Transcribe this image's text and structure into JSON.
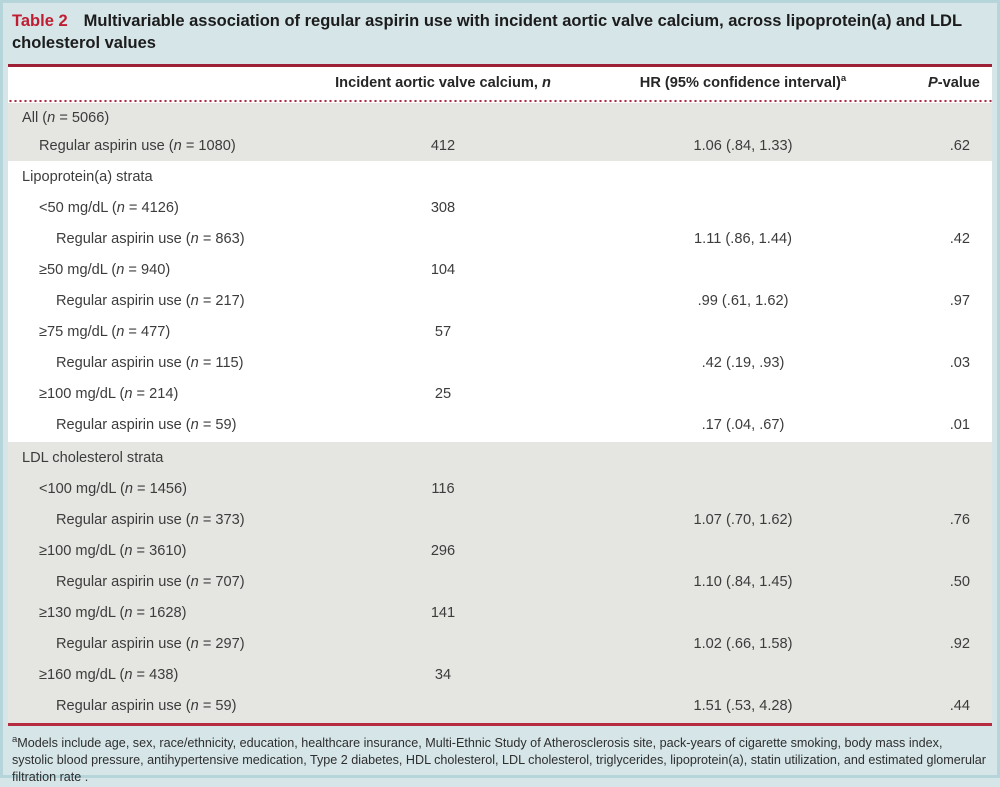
{
  "title": {
    "label": "Table 2",
    "text": "Multivariable association of regular aspirin use with incident aortic valve calcium, across lipoprotein(a) and LDL cholesterol values"
  },
  "table": {
    "columns": {
      "incident": {
        "label": "Incident aortic valve calcium, ",
        "italic": "n"
      },
      "hr": {
        "label": "HR (95% confidence interval)",
        "sup": "a"
      },
      "p": {
        "italic": "P",
        "label": "-value"
      }
    },
    "sections": [
      {
        "name": "all",
        "shaded": true,
        "rows": [
          {
            "label": "All (n = 5066)",
            "indent": 0,
            "incident": "",
            "hr": "",
            "p": ""
          },
          {
            "label": "Regular aspirin use (n = 1080)",
            "indent": 1,
            "incident": "412",
            "hr": "1.06 (.84, 1.33)",
            "p": ".62"
          }
        ]
      },
      {
        "name": "lipoprotein-a-strata",
        "shaded": false,
        "rows": [
          {
            "label": "Lipoprotein(a) strata",
            "indent": 0,
            "incident": "",
            "hr": "",
            "p": ""
          },
          {
            "label": "<50 mg/dL (n = 4126)",
            "indent": 1,
            "incident": "308",
            "hr": "",
            "p": ""
          },
          {
            "label": "Regular aspirin use (n = 863)",
            "indent": 2,
            "incident": "",
            "hr": "1.11 (.86, 1.44)",
            "p": ".42"
          },
          {
            "label": "≥50 mg/dL (n = 940)",
            "indent": 1,
            "incident": "104",
            "hr": "",
            "p": ""
          },
          {
            "label": "Regular aspirin use (n = 217)",
            "indent": 2,
            "incident": "",
            "hr": ".99 (.61, 1.62)",
            "p": ".97"
          },
          {
            "label": "≥75 mg/dL (n = 477)",
            "indent": 1,
            "incident": "57",
            "hr": "",
            "p": ""
          },
          {
            "label": "Regular aspirin use (n = 115)",
            "indent": 2,
            "incident": "",
            "hr": ".42 (.19, .93)",
            "p": ".03"
          },
          {
            "label": "≥100 mg/dL (n = 214)",
            "indent": 1,
            "incident": "25",
            "hr": "",
            "p": ""
          },
          {
            "label": "Regular aspirin use (n = 59)",
            "indent": 2,
            "incident": "",
            "hr": ".17 (.04, .67)",
            "p": ".01"
          }
        ]
      },
      {
        "name": "ldl-cholesterol-strata",
        "shaded": true,
        "rows": [
          {
            "label": "LDL cholesterol strata",
            "indent": 0,
            "incident": "",
            "hr": "",
            "p": ""
          },
          {
            "label": "<100 mg/dL (n = 1456)",
            "indent": 1,
            "incident": "116",
            "hr": "",
            "p": ""
          },
          {
            "label": "Regular aspirin use (n = 373)",
            "indent": 2,
            "incident": "",
            "hr": "1.07 (.70, 1.62)",
            "p": ".76"
          },
          {
            "label": "≥100 mg/dL (n = 3610)",
            "indent": 1,
            "incident": "296",
            "hr": "",
            "p": ""
          },
          {
            "label": "Regular aspirin use (n = 707)",
            "indent": 2,
            "incident": "",
            "hr": "1.10 (.84, 1.45)",
            "p": ".50"
          },
          {
            "label": "≥130 mg/dL (n = 1628)",
            "indent": 1,
            "incident": "141",
            "hr": "",
            "p": ""
          },
          {
            "label": "Regular aspirin use (n = 297)",
            "indent": 2,
            "incident": "",
            "hr": "1.02 (.66, 1.58)",
            "p": ".92"
          },
          {
            "label": "≥160 mg/dL (n = 438)",
            "indent": 1,
            "incident": "34",
            "hr": "",
            "p": ""
          },
          {
            "label": "Regular aspirin use (n = 59)",
            "indent": 2,
            "incident": "",
            "hr": "1.51 (.53, 4.28)",
            "p": ".44"
          }
        ]
      }
    ]
  },
  "footnote": {
    "sup": "a",
    "text": "Models include age, sex, race/ethnicity, education, healthcare insurance, Multi-Ethnic Study of Atherosclerosis site, pack-years of cigarette smoking, body mass index, systolic blood pressure, antihypertensive medication, Type 2 diabetes, HDL cholesterol, LDL cholesterol, triglycerides, lipoprotein(a), statin utilization, and estimated glomerular filtration rate ."
  },
  "colors": {
    "page_teal": "#d5e5e8",
    "edge_teal": "#b6d5db",
    "title_red": "#c01d33",
    "rule_dark": "#9c2136",
    "rule_red": "#b52c41",
    "dot_red": "#a83044",
    "shaded": "#e5e6e2",
    "text": "#3c3c3c"
  }
}
